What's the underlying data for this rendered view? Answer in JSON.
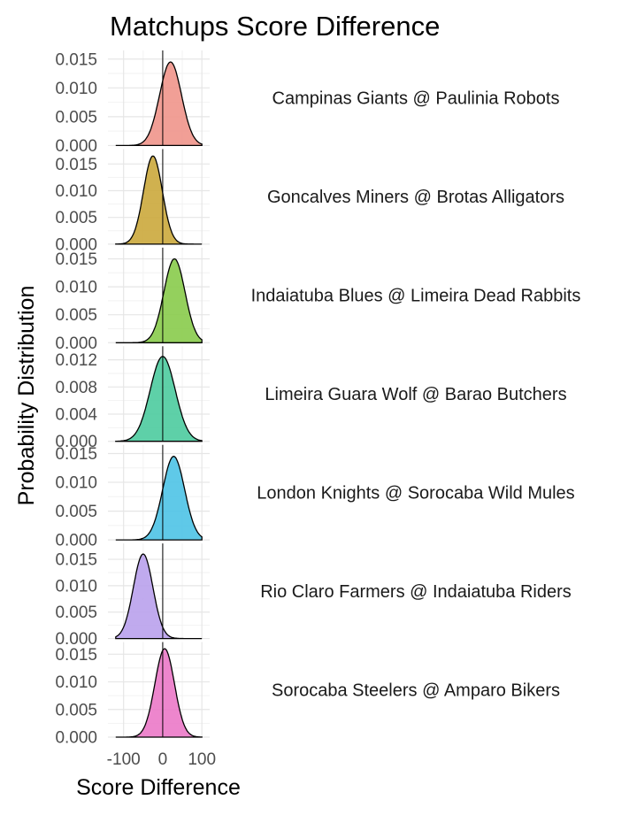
{
  "chart_data": {
    "type": "area",
    "title": "Matchups Score Difference",
    "xlabel": "Score Difference",
    "ylabel": "Probability Distribution",
    "xlim": [
      -140,
      120
    ],
    "x_ticks": [
      -100,
      0,
      100
    ],
    "x_tick_labels": [
      "-100",
      "0",
      "100"
    ],
    "grid": true,
    "reference_line_x": 0,
    "panels": [
      {
        "label": "Campinas Giants @ Paulinia Robots",
        "color": "#F0958B",
        "mean": 20,
        "sd": 28,
        "peak": 0.0145,
        "ylim": [
          0,
          0.0165
        ],
        "y_ticks": [
          0,
          0.005,
          0.01,
          0.015
        ],
        "y_tick_labels": [
          "0.000",
          "0.005",
          "0.010",
          "0.015"
        ]
      },
      {
        "label": "Goncalves Miners @ Brotas Alligators",
        "color": "#CBA83C",
        "mean": -25,
        "sd": 24,
        "peak": 0.0165,
        "ylim": [
          0,
          0.0178
        ],
        "y_ticks": [
          0,
          0.005,
          0.01,
          0.015
        ],
        "y_tick_labels": [
          "0.000",
          "0.005",
          "0.010",
          "0.015"
        ]
      },
      {
        "label": "Indaiatuba Blues @ Limeira Dead Rabbits",
        "color": "#88CB4B",
        "mean": 30,
        "sd": 27,
        "peak": 0.015,
        "ylim": [
          0,
          0.017
        ],
        "y_ticks": [
          0,
          0.005,
          0.01,
          0.015
        ],
        "y_tick_labels": [
          "0.000",
          "0.005",
          "0.010",
          "0.015"
        ]
      },
      {
        "label": "Limeira Guara Wolf @ Barao Butchers",
        "color": "#4DCB9E",
        "mean": 0,
        "sd": 32,
        "peak": 0.0125,
        "ylim": [
          0,
          0.014
        ],
        "y_ticks": [
          0,
          0.004,
          0.008,
          0.012
        ],
        "y_tick_labels": [
          "0.000",
          "0.004",
          "0.008",
          "0.012"
        ]
      },
      {
        "label": "London Knights @ Sorocaba Wild Mules",
        "color": "#4EC3E6",
        "mean": 28,
        "sd": 28,
        "peak": 0.0145,
        "ylim": [
          0,
          0.0165
        ],
        "y_ticks": [
          0,
          0.005,
          0.01,
          0.015
        ],
        "y_tick_labels": [
          "0.000",
          "0.005",
          "0.010",
          "0.015"
        ]
      },
      {
        "label": "Rio Claro Farmers @ Indaiatuba Riders",
        "color": "#B9A1EC",
        "mean": -50,
        "sd": 25,
        "peak": 0.016,
        "ylim": [
          0,
          0.018
        ],
        "y_ticks": [
          0,
          0.005,
          0.01,
          0.015
        ],
        "y_tick_labels": [
          "0.000",
          "0.005",
          "0.010",
          "0.015"
        ]
      },
      {
        "label": "Sorocaba Steelers @ Amparo Bikers",
        "color": "#EB79C8",
        "mean": 5,
        "sd": 25,
        "peak": 0.016,
        "ylim": [
          0,
          0.0172
        ],
        "y_ticks": [
          0,
          0.005,
          0.01,
          0.015
        ],
        "y_tick_labels": [
          "0.000",
          "0.005",
          "0.010",
          "0.015"
        ]
      }
    ]
  }
}
